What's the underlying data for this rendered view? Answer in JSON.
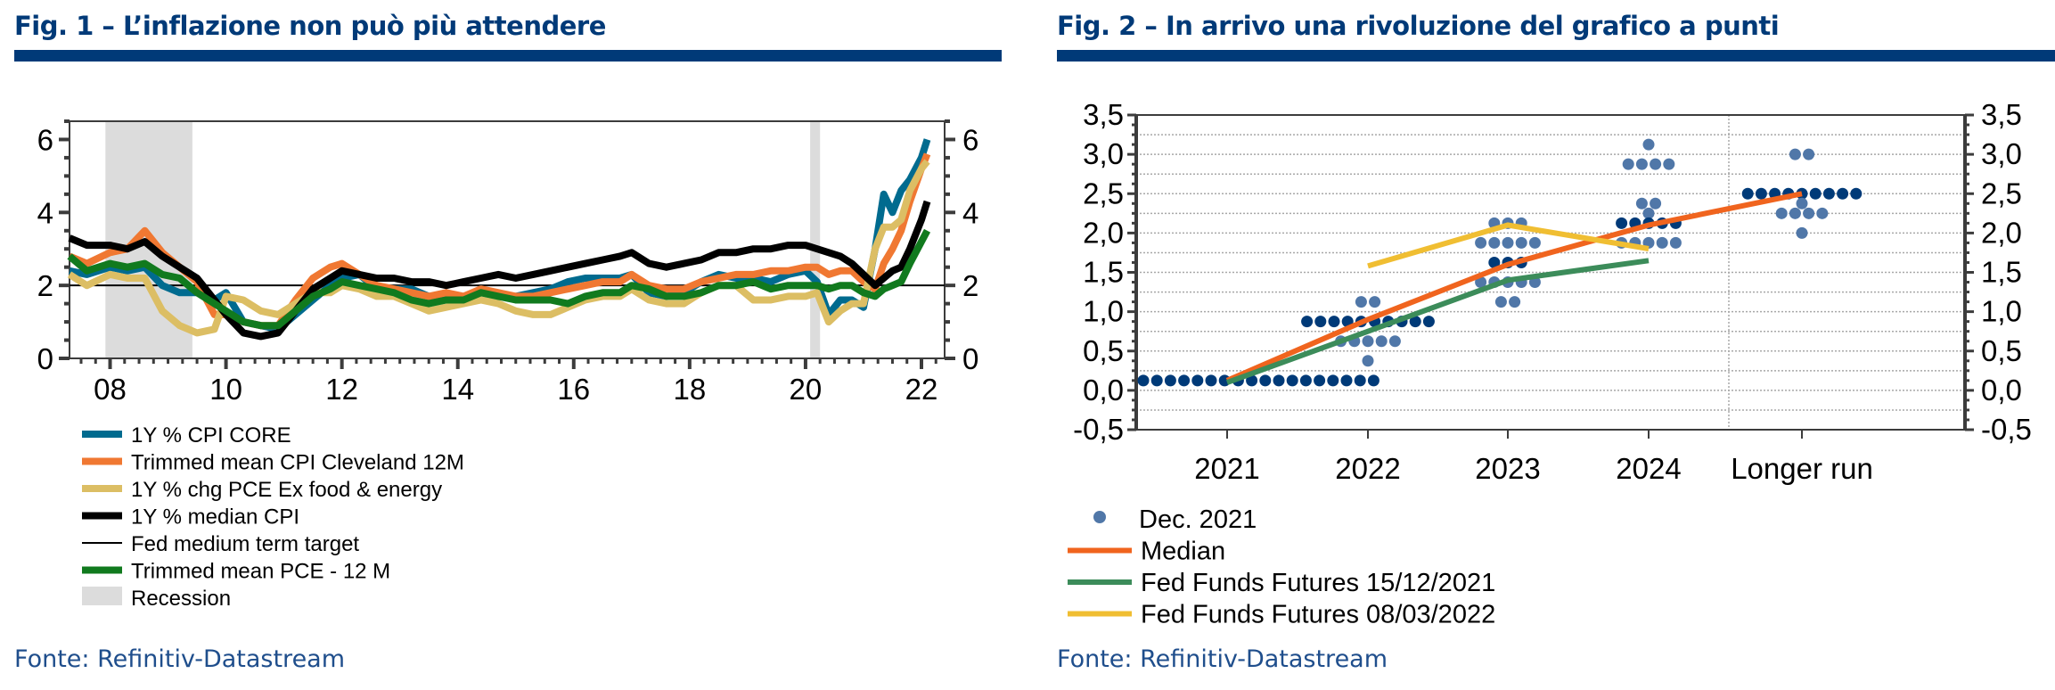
{
  "figures": [
    {
      "title": "Fig. 1 – L’inflazione non può più attendere",
      "source": "Fonte: Refinitiv-Datastream"
    },
    {
      "title": "Fig. 2 – In arrivo una rivoluzione del grafico a punti",
      "source": "Fonte: Refinitiv-Datastream"
    }
  ],
  "chart_data": [
    {
      "type": "line",
      "title": "Fig. 1 – L’inflazione non può più attendere",
      "xlabel": "",
      "ylabel": "",
      "xlim": [
        2007.3,
        2022.4
      ],
      "ylim": [
        0,
        6.5
      ],
      "yticks": [
        0,
        2,
        4,
        6
      ],
      "ytick_labels": [
        "0",
        "2",
        "4",
        "6"
      ],
      "xticks": [
        2008,
        2010,
        2012,
        2014,
        2016,
        2018,
        2020,
        2022
      ],
      "xtick_labels": [
        "08",
        "10",
        "12",
        "14",
        "16",
        "18",
        "20",
        "22"
      ],
      "dual_y_axis": true,
      "grid": false,
      "legend_position": "bottom",
      "recessions": [
        [
          2007.92,
          2009.42
        ],
        [
          2020.08,
          2020.25
        ]
      ],
      "reference_line": {
        "name": "Fed medium term target",
        "value": 2,
        "color": "#000000"
      },
      "series": [
        {
          "name": "1Y % CPI CORE",
          "color": "#006b8f",
          "x": [
            2007.3,
            2007.6,
            2008.0,
            2008.3,
            2008.6,
            2008.9,
            2009.2,
            2009.5,
            2009.8,
            2010.0,
            2010.3,
            2010.6,
            2010.9,
            2011.2,
            2011.5,
            2011.8,
            2012.0,
            2012.3,
            2012.6,
            2012.9,
            2013.2,
            2013.5,
            2013.8,
            2014.1,
            2014.4,
            2014.7,
            2015.0,
            2015.3,
            2015.6,
            2015.9,
            2016.2,
            2016.5,
            2016.8,
            2017.0,
            2017.3,
            2017.6,
            2017.9,
            2018.2,
            2018.5,
            2018.8,
            2019.1,
            2019.4,
            2019.7,
            2020.0,
            2020.2,
            2020.4,
            2020.6,
            2020.8,
            2021.0,
            2021.2,
            2021.35,
            2021.5,
            2021.65,
            2021.8,
            2022.0,
            2022.1
          ],
          "values": [
            2.4,
            2.3,
            2.5,
            2.4,
            2.5,
            2.0,
            1.8,
            1.8,
            1.6,
            1.8,
            1.0,
            0.9,
            0.8,
            1.2,
            1.6,
            2.0,
            2.2,
            2.3,
            1.9,
            1.9,
            1.9,
            1.7,
            1.7,
            1.6,
            1.9,
            1.7,
            1.7,
            1.8,
            1.9,
            2.1,
            2.2,
            2.2,
            2.2,
            2.3,
            1.8,
            1.7,
            1.8,
            2.1,
            2.3,
            2.2,
            2.2,
            2.1,
            2.3,
            2.4,
            2.1,
            1.2,
            1.6,
            1.6,
            1.4,
            3.0,
            4.5,
            4.0,
            4.6,
            4.9,
            5.5,
            6.0
          ]
        },
        {
          "name": "Trimmed mean CPI Cleveland 12M",
          "color": "#f07832",
          "x": [
            2007.3,
            2007.6,
            2008.0,
            2008.3,
            2008.6,
            2008.9,
            2009.2,
            2009.5,
            2009.8,
            2010.0,
            2010.3,
            2010.6,
            2010.9,
            2011.2,
            2011.5,
            2011.8,
            2012.0,
            2012.3,
            2012.6,
            2012.9,
            2013.2,
            2013.5,
            2013.8,
            2014.1,
            2014.4,
            2014.7,
            2015.0,
            2015.3,
            2015.6,
            2015.9,
            2016.2,
            2016.5,
            2016.8,
            2017.0,
            2017.3,
            2017.6,
            2017.9,
            2018.2,
            2018.5,
            2018.8,
            2019.1,
            2019.4,
            2019.7,
            2020.0,
            2020.2,
            2020.4,
            2020.6,
            2020.8,
            2021.0,
            2021.2,
            2021.35,
            2021.5,
            2021.65,
            2021.8,
            2022.0,
            2022.1
          ],
          "values": [
            2.8,
            2.6,
            2.9,
            3.0,
            3.5,
            2.9,
            2.5,
            2.1,
            1.2,
            1.2,
            1.0,
            0.9,
            0.9,
            1.6,
            2.2,
            2.5,
            2.6,
            2.3,
            2.0,
            1.9,
            1.8,
            1.7,
            1.8,
            1.7,
            1.9,
            1.8,
            1.7,
            1.7,
            1.8,
            1.9,
            2.0,
            2.1,
            2.1,
            2.3,
            2.0,
            1.9,
            1.9,
            2.1,
            2.2,
            2.3,
            2.3,
            2.4,
            2.4,
            2.5,
            2.5,
            2.3,
            2.4,
            2.4,
            2.1,
            1.9,
            2.6,
            3.0,
            3.5,
            4.3,
            5.2,
            5.6
          ]
        },
        {
          "name": "1Y % chg PCE Ex food & energy",
          "color": "#dcbe64",
          "x": [
            2007.3,
            2007.6,
            2008.0,
            2008.3,
            2008.6,
            2008.9,
            2009.2,
            2009.5,
            2009.8,
            2010.0,
            2010.3,
            2010.6,
            2010.9,
            2011.2,
            2011.5,
            2011.8,
            2012.0,
            2012.3,
            2012.6,
            2012.9,
            2013.2,
            2013.5,
            2013.8,
            2014.1,
            2014.4,
            2014.7,
            2015.0,
            2015.3,
            2015.6,
            2015.9,
            2016.2,
            2016.5,
            2016.8,
            2017.0,
            2017.3,
            2017.6,
            2017.9,
            2018.2,
            2018.5,
            2018.8,
            2019.1,
            2019.4,
            2019.7,
            2020.0,
            2020.2,
            2020.4,
            2020.6,
            2020.8,
            2021.0,
            2021.2,
            2021.35,
            2021.5,
            2021.65,
            2021.8,
            2022.0,
            2022.1
          ],
          "values": [
            2.3,
            2.0,
            2.3,
            2.2,
            2.2,
            1.3,
            0.9,
            0.7,
            0.8,
            1.7,
            1.6,
            1.3,
            1.2,
            1.5,
            1.8,
            1.8,
            2.0,
            1.9,
            1.7,
            1.7,
            1.5,
            1.3,
            1.4,
            1.5,
            1.6,
            1.5,
            1.3,
            1.2,
            1.2,
            1.4,
            1.6,
            1.7,
            1.7,
            1.9,
            1.6,
            1.5,
            1.5,
            1.8,
            2.0,
            2.0,
            1.6,
            1.6,
            1.7,
            1.7,
            1.8,
            1.0,
            1.3,
            1.5,
            1.5,
            3.0,
            3.6,
            3.6,
            3.8,
            4.6,
            5.2,
            5.4
          ]
        },
        {
          "name": "1Y % median CPI",
          "color": "#000000",
          "x": [
            2007.3,
            2007.6,
            2008.0,
            2008.3,
            2008.6,
            2008.9,
            2009.2,
            2009.5,
            2009.8,
            2010.0,
            2010.3,
            2010.6,
            2010.9,
            2011.2,
            2011.5,
            2011.8,
            2012.0,
            2012.3,
            2012.6,
            2012.9,
            2013.2,
            2013.5,
            2013.8,
            2014.1,
            2014.4,
            2014.7,
            2015.0,
            2015.3,
            2015.6,
            2015.9,
            2016.2,
            2016.5,
            2016.8,
            2017.0,
            2017.3,
            2017.6,
            2017.9,
            2018.2,
            2018.5,
            2018.8,
            2019.1,
            2019.4,
            2019.7,
            2020.0,
            2020.2,
            2020.4,
            2020.6,
            2020.8,
            2021.0,
            2021.2,
            2021.35,
            2021.5,
            2021.65,
            2021.8,
            2022.0,
            2022.1
          ],
          "values": [
            3.3,
            3.1,
            3.1,
            3.0,
            3.2,
            2.8,
            2.5,
            2.2,
            1.6,
            1.2,
            0.7,
            0.6,
            0.7,
            1.3,
            1.9,
            2.2,
            2.4,
            2.3,
            2.2,
            2.2,
            2.1,
            2.1,
            2.0,
            2.1,
            2.2,
            2.3,
            2.2,
            2.3,
            2.4,
            2.5,
            2.6,
            2.7,
            2.8,
            2.9,
            2.6,
            2.5,
            2.6,
            2.7,
            2.9,
            2.9,
            3.0,
            3.0,
            3.1,
            3.1,
            3.0,
            2.9,
            2.8,
            2.6,
            2.3,
            2.0,
            2.2,
            2.4,
            2.5,
            3.0,
            3.8,
            4.3
          ]
        },
        {
          "name": "Trimmed mean PCE - 12 M",
          "color": "#117a1e",
          "x": [
            2007.3,
            2007.6,
            2008.0,
            2008.3,
            2008.6,
            2008.9,
            2009.2,
            2009.5,
            2009.8,
            2010.0,
            2010.3,
            2010.6,
            2010.9,
            2011.2,
            2011.5,
            2011.8,
            2012.0,
            2012.3,
            2012.6,
            2012.9,
            2013.2,
            2013.5,
            2013.8,
            2014.1,
            2014.4,
            2014.7,
            2015.0,
            2015.3,
            2015.6,
            2015.9,
            2016.2,
            2016.5,
            2016.8,
            2017.0,
            2017.3,
            2017.6,
            2017.9,
            2018.2,
            2018.5,
            2018.8,
            2019.1,
            2019.4,
            2019.7,
            2020.0,
            2020.2,
            2020.4,
            2020.6,
            2020.8,
            2021.0,
            2021.2,
            2021.35,
            2021.5,
            2021.65,
            2021.8,
            2022.0,
            2022.1
          ],
          "values": [
            2.8,
            2.4,
            2.6,
            2.5,
            2.6,
            2.3,
            2.2,
            1.8,
            1.5,
            1.3,
            1.0,
            0.9,
            0.9,
            1.3,
            1.7,
            1.9,
            2.1,
            2.0,
            1.9,
            1.8,
            1.6,
            1.5,
            1.6,
            1.6,
            1.8,
            1.7,
            1.6,
            1.6,
            1.6,
            1.5,
            1.7,
            1.8,
            1.8,
            2.0,
            1.9,
            1.7,
            1.7,
            1.8,
            2.0,
            2.0,
            2.1,
            1.9,
            2.0,
            2.0,
            2.0,
            1.9,
            2.0,
            2.0,
            1.8,
            1.7,
            1.9,
            2.0,
            2.1,
            2.6,
            3.2,
            3.5
          ]
        }
      ],
      "legend": [
        {
          "label": "1Y % CPI CORE",
          "color": "#006b8f",
          "style": "thick"
        },
        {
          "label": "Trimmed mean CPI Cleveland 12M",
          "color": "#f07832",
          "style": "thick"
        },
        {
          "label": "1Y % chg PCE Ex food & energy",
          "color": "#dcbe64",
          "style": "thick"
        },
        {
          "label": "1Y % median CPI",
          "color": "#000000",
          "style": "thick"
        },
        {
          "label": "Fed medium term target",
          "color": "#000000",
          "style": "thin"
        },
        {
          "label": "Trimmed mean PCE - 12 M",
          "color": "#117a1e",
          "style": "thick"
        },
        {
          "label": "Recession",
          "color": "#dcdcdc",
          "style": "box"
        }
      ]
    },
    {
      "type": "scatter",
      "title": "Fig. 2 – In arrivo una rivoluzione del grafico a punti",
      "xlabel": "",
      "ylabel": "",
      "categories": [
        "2021",
        "2022",
        "2023",
        "2024",
        "Longer run"
      ],
      "ylim": [
        -0.5,
        3.5
      ],
      "yticks": [
        -0.5,
        0.0,
        0.5,
        1.0,
        1.5,
        2.0,
        2.5,
        3.0,
        3.5
      ],
      "ytick_labels": [
        "-0,5",
        "0,0",
        "0,5",
        "1,0",
        "1,5",
        "2,0",
        "2,5",
        "3,0",
        "3,5"
      ],
      "dual_y_axis": true,
      "grid": true,
      "legend_position": "bottom",
      "dots": {
        "name": "Dec. 2021",
        "light_color": "#5077a8",
        "dark_color": "#003a78",
        "columns": [
          {
            "category": "2021",
            "levels": [
              {
                "rate": 0.125,
                "count": 18,
                "emphasis": "dark",
                "span": "wide"
              }
            ]
          },
          {
            "category": "2022",
            "levels": [
              {
                "rate": 1.125,
                "count": 2,
                "emphasis": "light"
              },
              {
                "rate": 0.875,
                "count": 10,
                "emphasis": "dark"
              },
              {
                "rate": 0.625,
                "count": 5,
                "emphasis": "light"
              },
              {
                "rate": 0.375,
                "count": 1,
                "emphasis": "light"
              }
            ]
          },
          {
            "category": "2023",
            "levels": [
              {
                "rate": 2.125,
                "count": 3,
                "emphasis": "light"
              },
              {
                "rate": 1.875,
                "count": 5,
                "emphasis": "light"
              },
              {
                "rate": 1.625,
                "count": 3,
                "emphasis": "dark"
              },
              {
                "rate": 1.375,
                "count": 5,
                "emphasis": "light"
              },
              {
                "rate": 1.125,
                "count": 2,
                "emphasis": "light"
              }
            ]
          },
          {
            "category": "2024",
            "levels": [
              {
                "rate": 3.125,
                "count": 1,
                "emphasis": "light"
              },
              {
                "rate": 2.875,
                "count": 4,
                "emphasis": "light"
              },
              {
                "rate": 2.375,
                "count": 2,
                "emphasis": "light"
              },
              {
                "rate": 2.25,
                "count": 1,
                "emphasis": "light"
              },
              {
                "rate": 2.125,
                "count": 5,
                "emphasis": "dark"
              },
              {
                "rate": 1.875,
                "count": 5,
                "emphasis": "light"
              }
            ]
          },
          {
            "category": "Longer run",
            "levels": [
              {
                "rate": 3.0,
                "count": 2,
                "emphasis": "light"
              },
              {
                "rate": 2.5,
                "count": 9,
                "emphasis": "dark"
              },
              {
                "rate": 2.375,
                "count": 1,
                "emphasis": "light"
              },
              {
                "rate": 2.25,
                "count": 4,
                "emphasis": "light"
              },
              {
                "rate": 2.0,
                "count": 1,
                "emphasis": "light"
              }
            ]
          }
        ]
      },
      "series": [
        {
          "name": "Median",
          "color": "#f0641e",
          "x": [
            "2021",
            "2022",
            "2023",
            "2024",
            "Longer run"
          ],
          "values": [
            0.125,
            0.9,
            1.6,
            2.1,
            2.5
          ]
        },
        {
          "name": "Fed Funds Futures 15/12/2021",
          "color": "#3c8c5a",
          "x": [
            "2021",
            "2022",
            "2023",
            "2024"
          ],
          "values": [
            0.1,
            0.75,
            1.4,
            1.65
          ]
        },
        {
          "name": "Fed Funds Futures 08/03/2022",
          "color": "#f0be32",
          "x": [
            "2022",
            "2023",
            "2024"
          ],
          "values": [
            1.58,
            2.1,
            1.8
          ]
        }
      ],
      "legend": [
        {
          "label": "Dec. 2021",
          "color": "#5077a8",
          "style": "dot"
        },
        {
          "label": "Median",
          "color": "#f0641e",
          "style": "line"
        },
        {
          "label": "Fed Funds Futures 15/12/2021",
          "color": "#3c8c5a",
          "style": "line"
        },
        {
          "label": "Fed Funds Futures 08/03/2022",
          "color": "#f0be32",
          "style": "line"
        }
      ]
    }
  ]
}
